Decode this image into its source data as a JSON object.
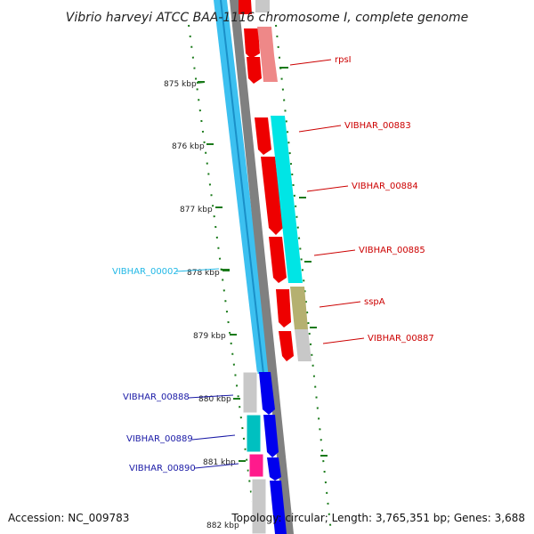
{
  "title": "Vibrio harveyi ATCC BAA-1116 chromosome I, complete genome",
  "footer": {
    "accession": "Accession: NC_009783",
    "stats": "Topology: circular; Length: 3,765,351 bp; Genes: 3,688"
  },
  "ticks": [
    "875 kbp",
    "876 kbp",
    "877 kbp",
    "878 kbp",
    "879 kbp",
    "880 kbp",
    "881 kbp",
    "882 kbp"
  ],
  "labels": {
    "right": [
      {
        "text": "rpsI",
        "color": "#cc0000"
      },
      {
        "text": "VIBHAR_00883",
        "color": "#cc0000"
      },
      {
        "text": "VIBHAR_00884",
        "color": "#cc0000"
      },
      {
        "text": "VIBHAR_00885",
        "color": "#cc0000"
      },
      {
        "text": "sspA",
        "color": "#cc0000"
      },
      {
        "text": "VIBHAR_00887",
        "color": "#cc0000"
      }
    ],
    "left": [
      {
        "text": "VIBHAR_00002",
        "color": "#22b8e6"
      },
      {
        "text": "VIBHAR_00888",
        "color": "#1a1aa6"
      },
      {
        "text": "VIBHAR_00889",
        "color": "#1a1aa6"
      },
      {
        "text": "VIBHAR_00890",
        "color": "#1a1aa6"
      }
    ]
  },
  "colors": {
    "plus_strand_cds": "#ee0000",
    "plus_strand_feature": "#ee8888",
    "minus_strand_cds": "#0000ee",
    "light_blue_band": "#3cc0f0",
    "cyan": "#00e5e5",
    "teal": "#00c0c0",
    "olive": "#b5b070",
    "magenta": "#ff1a8c",
    "grey": "#c8c8c8",
    "backbone": "#808080",
    "gc_dots": "#1a7a1a"
  }
}
